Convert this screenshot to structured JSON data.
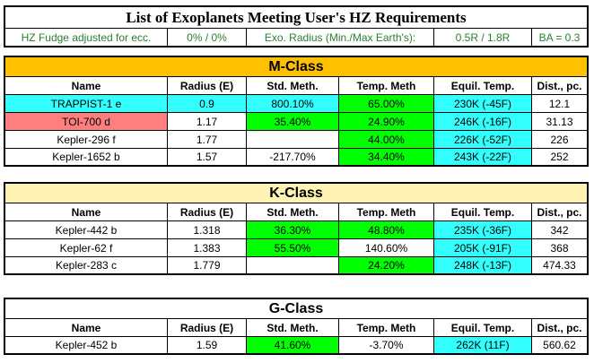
{
  "title": "List of Exoplanets Meeting User's HZ Requirements",
  "settings": {
    "fudge_label": "HZ Fudge adjusted for ecc.",
    "fudge_value": "0% / 0%",
    "radius_label": "Exo. Radius (Min./Max Earth's):",
    "radius_value": "0.5R / 1.8R",
    "ba_value": "BA = 0.3"
  },
  "columns": [
    "Name",
    "Radius (E)",
    "Std. Meth.",
    "Temp. Meth",
    "Equil. Temp.",
    "Dist., pc."
  ],
  "colors": {
    "green": "#00ff00",
    "cyan": "#33ffff",
    "salmon": "#ff7f7f",
    "m_header": "#ffc000",
    "k_header": "#fff2b3",
    "settings_text": "#2e7d32"
  },
  "m_class": {
    "label": "M-Class",
    "rows": [
      {
        "name": "TRAPPIST-1 e",
        "radius": "0.9",
        "std": "800.10%",
        "temp": "65.00%",
        "equil": "230K (-45F)",
        "dist": "12.1"
      },
      {
        "name": "TOI-700 d",
        "radius": "1.17",
        "std": "35.40%",
        "temp": "24.90%",
        "equil": "246K (-16F)",
        "dist": "31.13"
      },
      {
        "name": "Kepler-296 f",
        "radius": "1.77",
        "std": "",
        "temp": "44.00%",
        "equil": "226K (-52F)",
        "dist": "226"
      },
      {
        "name": "Kepler-1652 b",
        "radius": "1.57",
        "std": "-217.70%",
        "temp": "34.40%",
        "equil": "243K (-22F)",
        "dist": "252"
      }
    ]
  },
  "k_class": {
    "label": "K-Class",
    "rows": [
      {
        "name": "Kepler-442 b",
        "radius": "1.318",
        "std": "36.30%",
        "temp": "48.80%",
        "equil": "235K (-36F)",
        "dist": "342"
      },
      {
        "name": "Kepler-62 f",
        "radius": "1.383",
        "std": "55.50%",
        "temp": "140.60%",
        "equil": "205K (-91F)",
        "dist": "368"
      },
      {
        "name": "Kepler-283 c",
        "radius": "1.779",
        "std": "",
        "temp": "24.20%",
        "equil": "248K (-13F)",
        "dist": "474.33"
      }
    ]
  },
  "g_class": {
    "label": "G-Class",
    "rows": [
      {
        "name": "Kepler-452 b",
        "radius": "1.59",
        "std": "41.60%",
        "temp": "-3.70%",
        "equil": "262K (11F)",
        "dist": "560.62"
      }
    ]
  }
}
